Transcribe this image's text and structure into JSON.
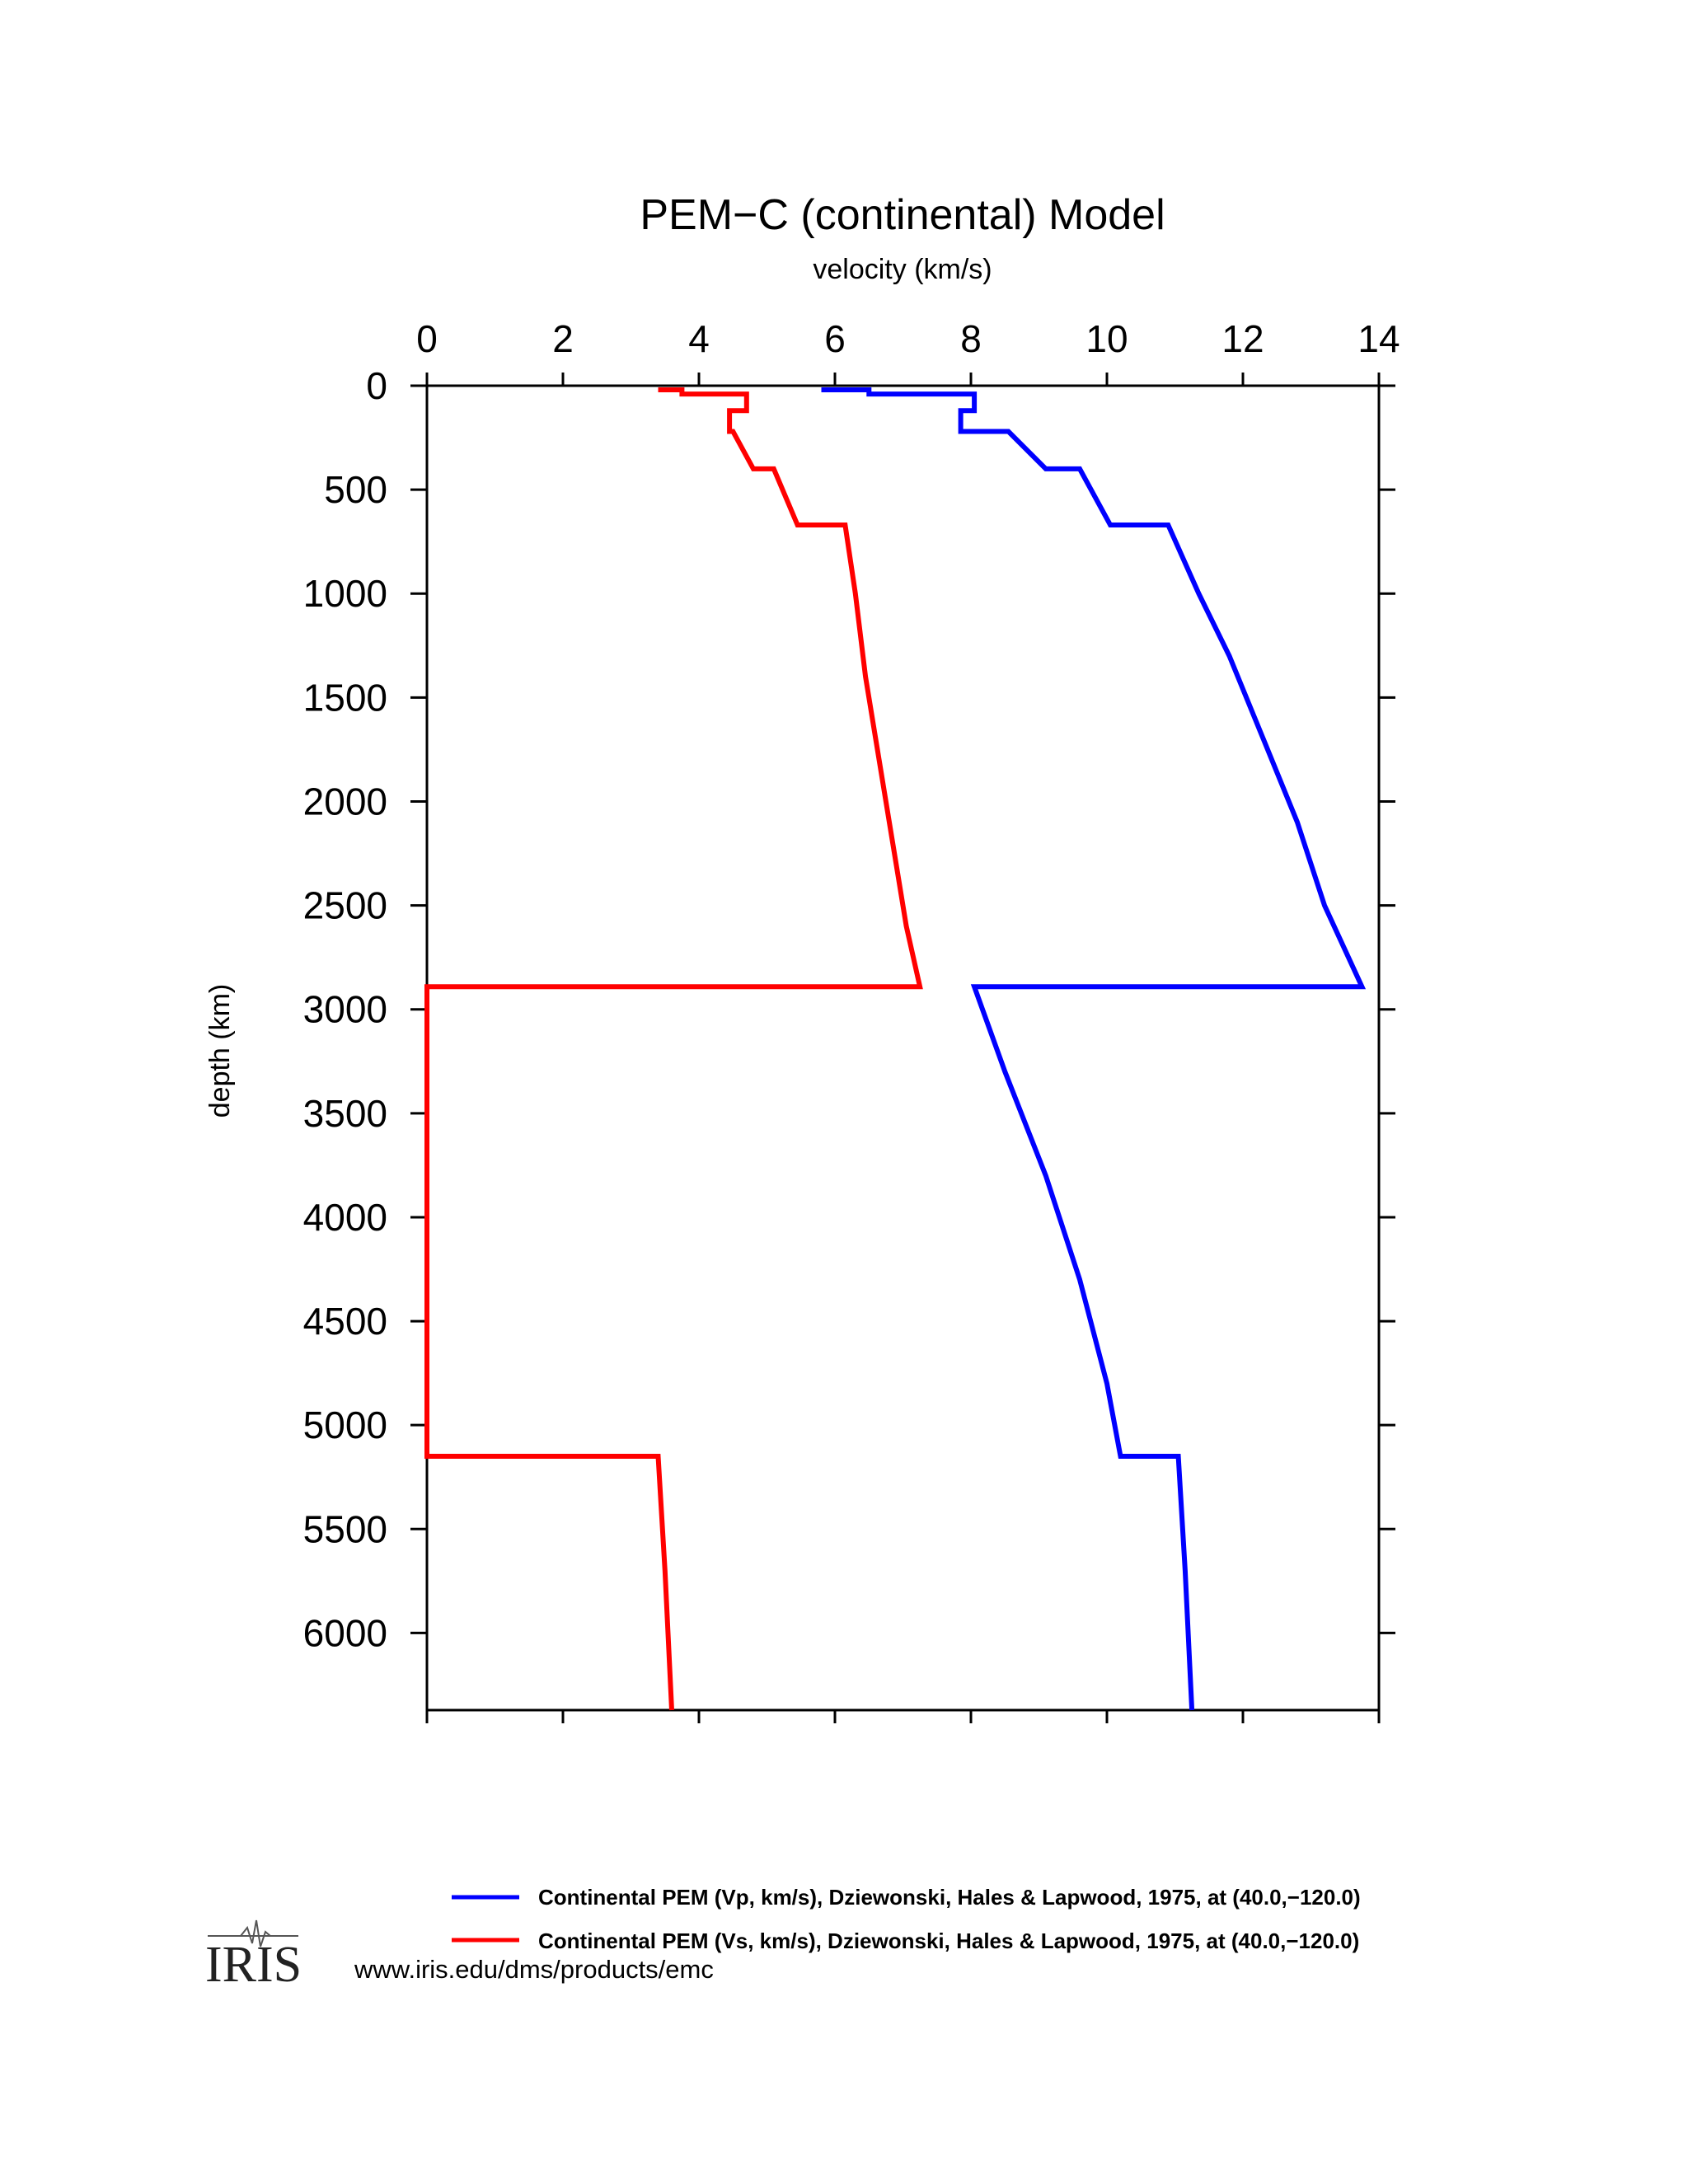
{
  "chart_data": {
    "type": "line",
    "title": "PEM−C (continental) Model",
    "xlabel": "velocity (km/s)",
    "ylabel": "depth (km)",
    "xlim": [
      0,
      14
    ],
    "ylim": [
      6371,
      0
    ],
    "x_ticks": [
      "0",
      "2",
      "4",
      "6",
      "8",
      "10",
      "12",
      "14"
    ],
    "y_ticks": [
      "0",
      "500",
      "1000",
      "1500",
      "2000",
      "2500",
      "3000",
      "3500",
      "4000",
      "4500",
      "5000",
      "5500",
      "6000"
    ],
    "series": [
      {
        "name": "Continental PEM (Vp, km/s), Dziewonski, Hales & Lapwood, 1975, at (40.0,−120.0)",
        "color": "#0000ff",
        "points": [
          [
            5.8,
            20
          ],
          [
            6.5,
            20
          ],
          [
            6.5,
            40
          ],
          [
            8.05,
            40
          ],
          [
            8.05,
            120
          ],
          [
            7.85,
            120
          ],
          [
            7.85,
            220
          ],
          [
            8.55,
            220
          ],
          [
            9.1,
            400
          ],
          [
            9.6,
            400
          ],
          [
            10.05,
            670
          ],
          [
            10.9,
            670
          ],
          [
            11.35,
            1000
          ],
          [
            11.8,
            1300
          ],
          [
            12.3,
            1700
          ],
          [
            12.8,
            2100
          ],
          [
            13.2,
            2500
          ],
          [
            13.75,
            2891
          ],
          [
            8.05,
            2891
          ],
          [
            8.5,
            3300
          ],
          [
            9.1,
            3800
          ],
          [
            9.6,
            4300
          ],
          [
            10.0,
            4800
          ],
          [
            10.2,
            5150
          ],
          [
            11.05,
            5150
          ],
          [
            11.15,
            5700
          ],
          [
            11.25,
            6371
          ]
        ]
      },
      {
        "name": "Continental PEM (Vs, km/s), Dziewonski, Hales & Lapwood, 1975, at (40.0,−120.0)",
        "color": "#ff0000",
        "points": [
          [
            3.4,
            20
          ],
          [
            3.75,
            20
          ],
          [
            3.75,
            40
          ],
          [
            4.7,
            40
          ],
          [
            4.7,
            120
          ],
          [
            4.45,
            120
          ],
          [
            4.45,
            220
          ],
          [
            4.5,
            220
          ],
          [
            4.8,
            400
          ],
          [
            5.1,
            400
          ],
          [
            5.45,
            670
          ],
          [
            6.15,
            670
          ],
          [
            6.3,
            1000
          ],
          [
            6.45,
            1400
          ],
          [
            6.65,
            1800
          ],
          [
            6.85,
            2200
          ],
          [
            7.05,
            2600
          ],
          [
            7.25,
            2891
          ],
          [
            0,
            2891
          ],
          [
            0,
            5150
          ],
          [
            3.4,
            5150
          ],
          [
            3.5,
            5700
          ],
          [
            3.6,
            6371
          ]
        ]
      }
    ],
    "legend_position": "bottom"
  },
  "footer": {
    "url": "www.iris.edu/dms/products/emc",
    "logo_text": "IRIS"
  }
}
